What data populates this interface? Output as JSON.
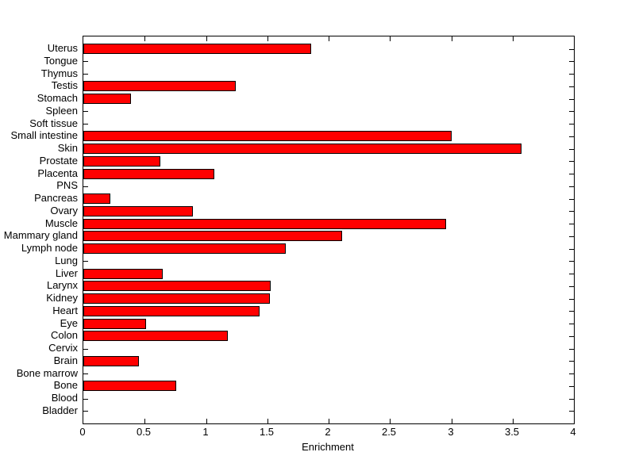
{
  "chart_data": {
    "type": "bar",
    "orientation": "horizontal",
    "title": "",
    "xlabel": "Enrichment",
    "ylabel": "",
    "xlim": [
      0,
      4
    ],
    "x_ticks": [
      0,
      0.5,
      1,
      1.5,
      2,
      2.5,
      3,
      3.5,
      4
    ],
    "x_tick_labels": [
      "0",
      "0.5",
      "1",
      "1.5",
      "2",
      "2.5",
      "3",
      "3.5",
      "4"
    ],
    "grid": false,
    "legend": null,
    "categories_top_to_bottom": [
      "Uterus",
      "Tongue",
      "Thymus",
      "Testis",
      "Stomach",
      "Spleen",
      "Soft tissue",
      "Small intestine",
      "Skin",
      "Prostate",
      "Placenta",
      "PNS",
      "Pancreas",
      "Ovary",
      "Muscle",
      "Mammary gland",
      "Lymph node",
      "Lung",
      "Liver",
      "Larynx",
      "Kidney",
      "Heart",
      "Eye",
      "Colon",
      "Cervix",
      "Brain",
      "Bone marrow",
      "Bone",
      "Blood",
      "Bladder"
    ],
    "values": [
      1.86,
      0,
      0,
      1.24,
      0.39,
      0,
      0,
      3.0,
      3.57,
      0.63,
      1.07,
      0,
      0.22,
      0.89,
      2.96,
      2.11,
      1.65,
      0,
      0.65,
      1.53,
      1.52,
      1.44,
      0.51,
      1.18,
      0,
      0.45,
      0,
      0.76,
      0,
      0
    ],
    "bar_color": "#ff0000",
    "bar_border_color": "#000000",
    "axis_color": "#000000",
    "background_color": "#ffffff",
    "text_color": "#000000"
  }
}
